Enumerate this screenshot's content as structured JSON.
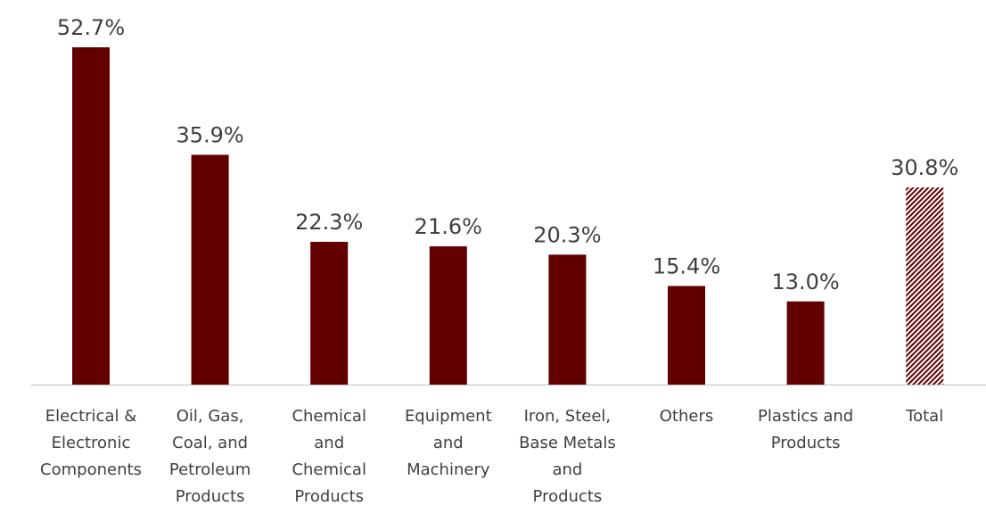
{
  "chart_data": {
    "type": "bar",
    "title": "",
    "xlabel": "",
    "ylabel": "",
    "ylim": [
      0,
      55
    ],
    "grid": false,
    "legend": "none",
    "categories": [
      "Electrical & Electronic Components",
      "Oil, Gas, Coal, and Petroleum Products",
      "Chemical and Chemical Products",
      "Equipment and Machinery",
      "Iron, Steel, Base Metals and Products",
      "Others",
      "Plastics and Products",
      "Total"
    ],
    "category_label_lines": [
      [
        "Electrical &",
        "Electronic",
        "Components"
      ],
      [
        "Oil, Gas,",
        "Coal, and",
        "Petroleum",
        "Products"
      ],
      [
        "Chemical",
        "and",
        "Chemical",
        "Products"
      ],
      [
        "Equipment",
        "and",
        "Machinery"
      ],
      [
        "Iron, Steel,",
        "Base Metals",
        "and",
        "Products"
      ],
      [
        "Others"
      ],
      [
        "Plastics and",
        "Products"
      ],
      [
        "Total"
      ]
    ],
    "values": [
      52.7,
      35.9,
      22.3,
      21.6,
      20.3,
      15.4,
      13.0,
      30.8
    ],
    "value_labels": [
      "52.7%",
      "35.9%",
      "22.3%",
      "21.6%",
      "20.3%",
      "15.4%",
      "13.0%",
      "30.8%"
    ],
    "bar_styles": [
      "solid",
      "solid",
      "solid",
      "solid",
      "solid",
      "solid",
      "solid",
      "hatched"
    ],
    "colors": {
      "bar": "#620000",
      "hatch_background": "#ffffff",
      "axis": "#bfbfbf",
      "text": "#404040"
    }
  }
}
